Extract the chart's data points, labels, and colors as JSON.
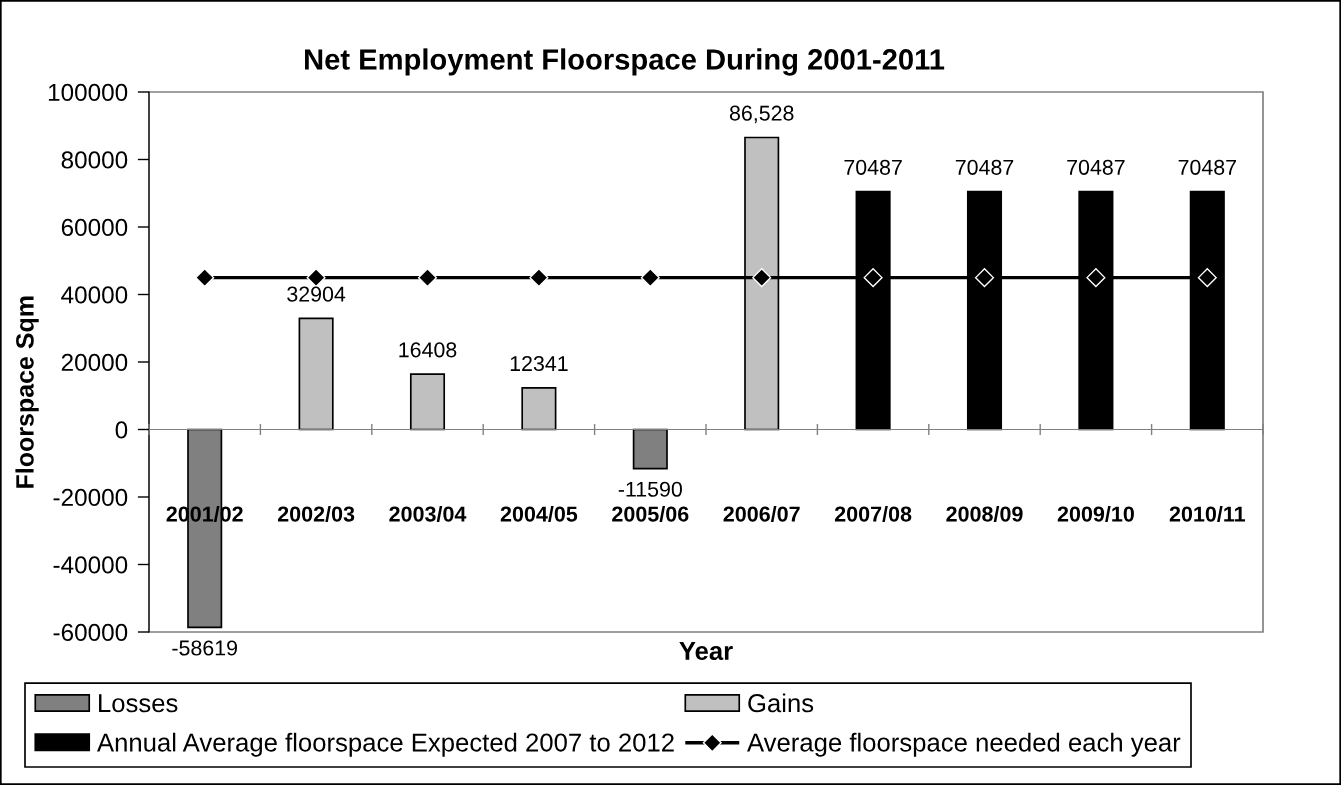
{
  "chart_data": {
    "type": "bar",
    "title": "Net Employment Floorspace During 2001-2011",
    "xlabel": "Year",
    "ylabel": "Floorspace Sqm",
    "categories": [
      "2001/02",
      "2002/03",
      "2003/04",
      "2004/05",
      "2005/06",
      "2006/07",
      "2007/08",
      "2008/09",
      "2009/10",
      "2010/11"
    ],
    "stacked": true,
    "series": [
      {
        "name": "Losses",
        "color": "#808080",
        "values": [
          -58619,
          null,
          null,
          null,
          -11590,
          null,
          null,
          null,
          null,
          null
        ],
        "value_labels": [
          "-58619",
          null,
          null,
          null,
          "-11590",
          null,
          null,
          null,
          null,
          null
        ]
      },
      {
        "name": "Gains",
        "color": "#c0c0c0",
        "values": [
          null,
          32904,
          16408,
          12341,
          null,
          86528,
          null,
          null,
          null,
          null
        ],
        "value_labels": [
          null,
          "32904",
          "16408",
          "12341",
          null,
          "86,528",
          null,
          null,
          null,
          null
        ]
      },
      {
        "name": "Annual Average floorspace Expected 2007 to 2012",
        "color": "#000000",
        "values": [
          null,
          null,
          null,
          null,
          null,
          null,
          70487,
          70487,
          70487,
          70487
        ],
        "value_labels": [
          null,
          null,
          null,
          null,
          null,
          null,
          "70487",
          "70487",
          "70487",
          "70487"
        ]
      },
      {
        "name": "Average floorspace needed each year",
        "type": "line",
        "color": "#000000",
        "marker": "diamond",
        "values": [
          45000,
          45000,
          45000,
          45000,
          45000,
          45000,
          45000,
          45000,
          45000,
          45000
        ]
      }
    ],
    "ylim": [
      -60000,
      100000
    ],
    "yticks": [
      -60000,
      -40000,
      -20000,
      0,
      20000,
      40000,
      60000,
      80000,
      100000
    ],
    "legend": "bottom"
  }
}
